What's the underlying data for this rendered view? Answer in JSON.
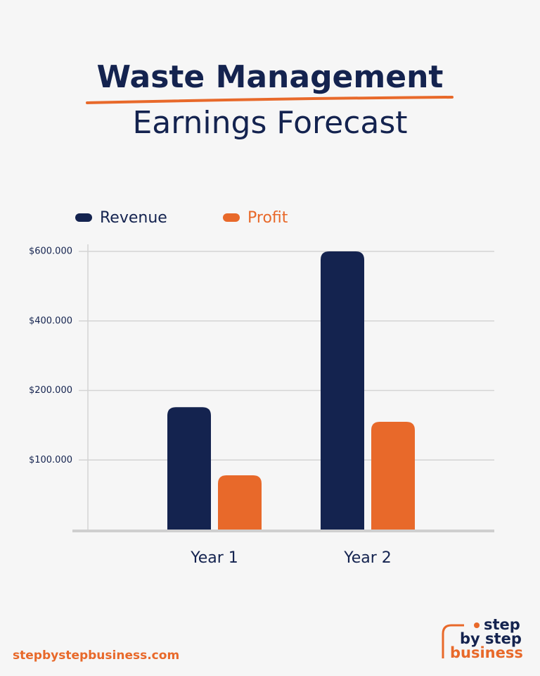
{
  "chart_data": {
    "type": "bar",
    "title": "Waste Management",
    "subtitle": "Earnings Forecast",
    "categories": [
      "Year 1",
      "Year 2"
    ],
    "series": [
      {
        "name": "Revenue",
        "color": "#14234f",
        "values": [
          176000,
          600000
        ]
      },
      {
        "name": "Profit",
        "color": "#e8692a",
        "values": [
          78000,
          155000
        ]
      }
    ],
    "ylim": [
      0,
      600000
    ],
    "yticks": [
      {
        "value": 100000,
        "label": "$100.000"
      },
      {
        "value": 200000,
        "label": "$200.000"
      },
      {
        "value": 400000,
        "label": "$400.000"
      },
      {
        "value": 600000,
        "label": "$600.000"
      }
    ],
    "grid": true,
    "legend": "top"
  },
  "footer": {
    "url": "stepbystepbusiness.com",
    "logo": [
      "step",
      "by step",
      "business"
    ]
  }
}
